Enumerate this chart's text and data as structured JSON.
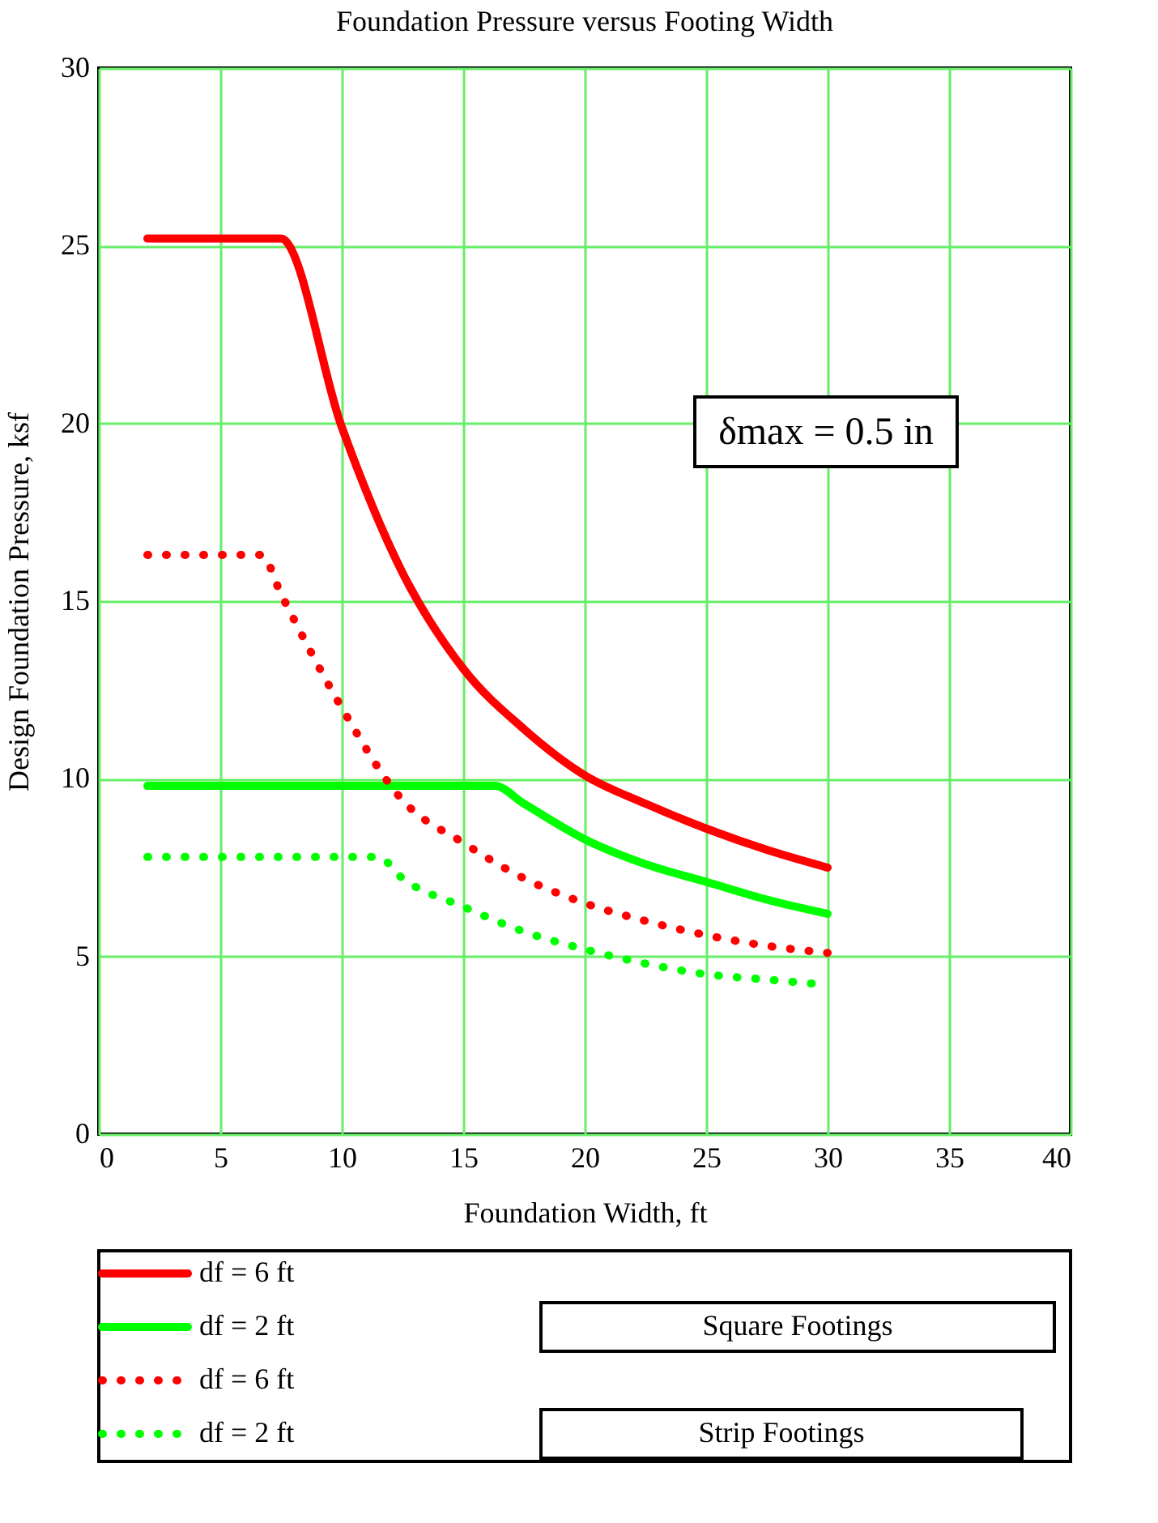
{
  "chart_data": {
    "type": "line",
    "title": "Foundation Pressure versus Footing Width",
    "xlabel": "Foundation Width, ft",
    "ylabel": "Design Foundation Pressure, ksf",
    "xlim": [
      0,
      40
    ],
    "xticks": [
      0,
      5,
      10,
      15,
      20,
      25,
      30,
      35,
      40
    ],
    "ylim": [
      0,
      30
    ],
    "yticks": [
      0,
      5,
      10,
      15,
      20,
      25,
      30
    ],
    "grid": true,
    "legend": "bottom left",
    "annotations": [
      "δmax = 0.5 in",
      "Square Footings",
      "Strip Footings"
    ],
    "series": [
      {
        "name": "df = 6 ft",
        "color": "#ff0000",
        "line_style": "solid",
        "x": [
          2,
          7.5,
          10,
          12.5,
          15,
          17.5,
          20,
          22.5,
          25,
          27.5,
          30
        ],
        "values": [
          25.2,
          25.2,
          19.9,
          15.8,
          13.1,
          11.4,
          10.1,
          9.3,
          8.6,
          8.0,
          7.5
        ]
      },
      {
        "name": "df = 2 ft",
        "color": "#00ff00",
        "line_style": "solid",
        "x": [
          2,
          16.3,
          17.5,
          20,
          22.5,
          25,
          27.5,
          30
        ],
        "values": [
          9.8,
          9.8,
          9.3,
          8.3,
          7.6,
          7.1,
          6.6,
          6.2
        ]
      },
      {
        "name": "df = 6 ft",
        "color": "#ff0000",
        "line_style": "dotted",
        "x": [
          2,
          6.7,
          7.5,
          10,
          12.5,
          15,
          17.5,
          20,
          22.5,
          25,
          27.5,
          30
        ],
        "values": [
          16.3,
          16.3,
          15.2,
          12.0,
          9.4,
          8.2,
          7.2,
          6.5,
          6.0,
          5.6,
          5.3,
          5.1
        ]
      },
      {
        "name": "df = 2 ft",
        "color": "#00ff00",
        "line_style": "dotted",
        "x": [
          2,
          11.5,
          12.5,
          15,
          17.5,
          20,
          22.5,
          25,
          27.5,
          30
        ],
        "values": [
          7.8,
          7.8,
          7.2,
          6.4,
          5.7,
          5.2,
          4.8,
          4.5,
          4.35,
          4.2
        ]
      }
    ]
  }
}
